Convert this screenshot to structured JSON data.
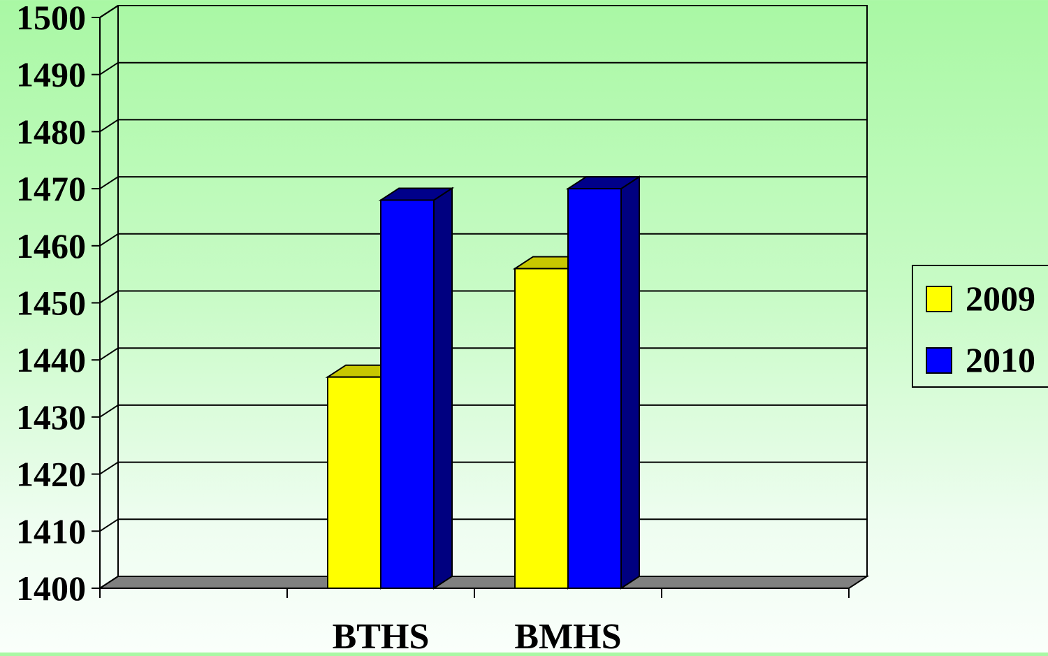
{
  "chart_data": {
    "type": "bar",
    "style": "3d-clustered-column",
    "categories": [
      "",
      "BTHS",
      "BMHS",
      ""
    ],
    "series": [
      {
        "name": "2009",
        "values": [
          null,
          1437,
          1456,
          null
        ],
        "color": "#ffff00",
        "top_color": "#c8c800",
        "side_color": "#b3b300"
      },
      {
        "name": "2010",
        "values": [
          null,
          1468,
          1470,
          null
        ],
        "color": "#0000ff",
        "top_color": "#00008a",
        "side_color": "#000080"
      }
    ],
    "ylim": [
      1400,
      1500
    ],
    "yticks": [
      "1400",
      "1410",
      "1420",
      "1430",
      "1440",
      "1450",
      "1460",
      "1470",
      "1480",
      "1490",
      "1500"
    ],
    "title": "",
    "xlabel": "",
    "ylabel": "",
    "grid": true,
    "legend": "right",
    "floor_color": "#808080"
  }
}
